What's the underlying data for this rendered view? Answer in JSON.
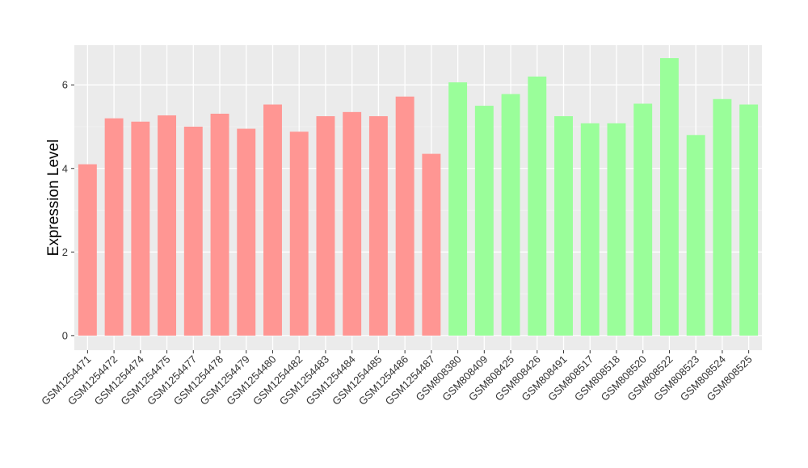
{
  "chart_data": {
    "type": "bar",
    "title": "",
    "xlabel": "",
    "ylabel": "Expression Level",
    "ylim": [
      -0.35,
      6.95
    ],
    "yticks": [
      0,
      2,
      4,
      6
    ],
    "grid": true,
    "legend": "none",
    "categories": [
      "GSM1254471",
      "GSM1254472",
      "GSM1254474",
      "GSM1254475",
      "GSM1254477",
      "GSM1254478",
      "GSM1254479",
      "GSM1254480",
      "GSM1254482",
      "GSM1254483",
      "GSM1254484",
      "GSM1254485",
      "GSM1254486",
      "GSM1254487",
      "GSM808380",
      "GSM808409",
      "GSM808425",
      "GSM808426",
      "GSM808491",
      "GSM808517",
      "GSM808518",
      "GSM808520",
      "GSM808522",
      "GSM808523",
      "GSM808524",
      "GSM808525"
    ],
    "values": [
      4.1,
      5.2,
      5.12,
      5.27,
      5.0,
      5.31,
      4.95,
      5.53,
      4.88,
      5.25,
      5.35,
      5.25,
      5.72,
      4.35,
      6.06,
      5.5,
      5.78,
      6.2,
      5.25,
      5.08,
      5.08,
      5.55,
      6.64,
      4.8,
      5.66,
      5.53
    ],
    "groups": [
      "a",
      "a",
      "a",
      "a",
      "a",
      "a",
      "a",
      "a",
      "a",
      "a",
      "a",
      "a",
      "a",
      "a",
      "b",
      "b",
      "b",
      "b",
      "b",
      "b",
      "b",
      "b",
      "b",
      "b",
      "b",
      "b"
    ],
    "colors": {
      "a": "#ff9693",
      "b": "#9afe9a",
      "panel": "#ebebeb",
      "grid_major": "#ffffff",
      "tick_text": "#333333"
    }
  }
}
